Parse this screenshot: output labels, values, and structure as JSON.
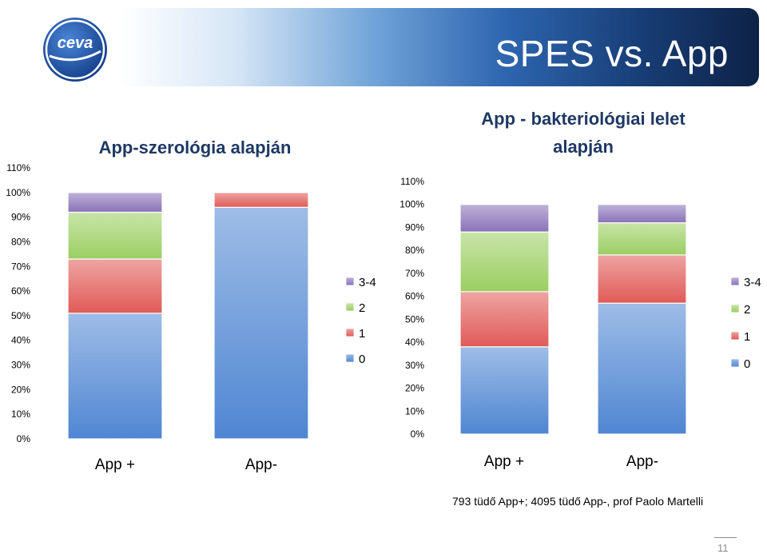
{
  "slide": {
    "title": "SPES vs. App",
    "logo_text": "ceva",
    "footnote": "793 tüdő App+; 4095 tüdő App-, prof Paolo Martelli",
    "page_number": "11"
  },
  "colors": {
    "series_0": "#4f86d2",
    "series_1": "#e05a57",
    "series_2": "#9bce62",
    "series_3": "#8a72b8"
  },
  "chart_data": [
    {
      "type": "bar",
      "stacked": true,
      "title": "App-szerológia alapján",
      "categories": [
        "App +",
        "App-"
      ],
      "y_ticks": [
        "0%",
        "10%",
        "20%",
        "30%",
        "40%",
        "50%",
        "60%",
        "70%",
        "80%",
        "90%",
        "100%",
        "110%"
      ],
      "ylim": [
        0,
        110
      ],
      "legend_position": "right",
      "series": [
        {
          "name": "0",
          "values": [
            51,
            94
          ]
        },
        {
          "name": "1",
          "values": [
            22,
            6
          ]
        },
        {
          "name": "2",
          "values": [
            19,
            0
          ]
        },
        {
          "name": "3-4",
          "values": [
            8,
            0
          ]
        }
      ],
      "legend": [
        "3-4",
        "2",
        "1",
        "0"
      ],
      "grid": false
    },
    {
      "type": "bar",
      "stacked": true,
      "title": "App - bakteriológiai lelet alapján",
      "categories": [
        "App +",
        "App-"
      ],
      "y_ticks": [
        "0%",
        "10%",
        "20%",
        "30%",
        "40%",
        "50%",
        "60%",
        "70%",
        "80%",
        "90%",
        "100%",
        "110%"
      ],
      "ylim": [
        0,
        110
      ],
      "legend_position": "right",
      "series": [
        {
          "name": "0",
          "values": [
            38,
            57
          ]
        },
        {
          "name": "1",
          "values": [
            24,
            21
          ]
        },
        {
          "name": "2",
          "values": [
            26,
            14
          ]
        },
        {
          "name": "3-4",
          "values": [
            12,
            8
          ]
        }
      ],
      "legend": [
        "3-4",
        "2",
        "1",
        "0"
      ],
      "grid": false
    }
  ]
}
